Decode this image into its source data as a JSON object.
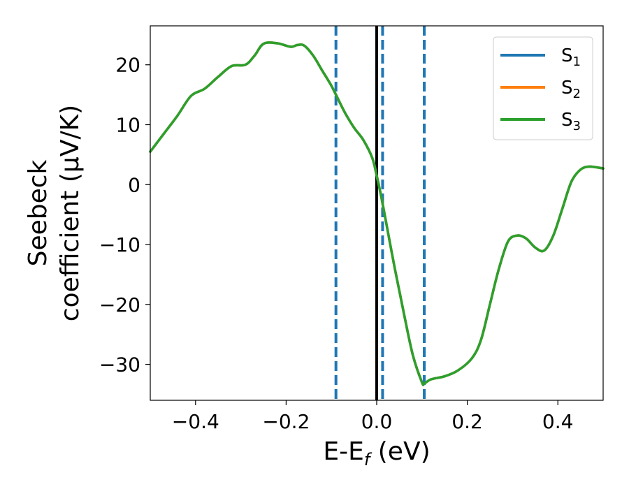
{
  "chart_data": {
    "type": "line",
    "xlabel": {
      "main": "E-E",
      "sub": "f",
      "tail": " (eV)"
    },
    "ylabel": {
      "line1": "Seebeck",
      "line2": "coefficient  (μV/K)"
    },
    "xlim": [
      -0.5,
      0.5
    ],
    "ylim": [
      -36,
      26.5
    ],
    "xticks": [
      {
        "value": -0.4,
        "label": "−0.4"
      },
      {
        "value": -0.2,
        "label": "−0.2"
      },
      {
        "value": 0.0,
        "label": "0.0"
      },
      {
        "value": 0.2,
        "label": "0.2"
      },
      {
        "value": 0.4,
        "label": "0.4"
      }
    ],
    "yticks": [
      {
        "value": 20,
        "label": "20"
      },
      {
        "value": 10,
        "label": "10"
      },
      {
        "value": 0,
        "label": "0"
      },
      {
        "value": -10,
        "label": "−10"
      },
      {
        "value": -20,
        "label": "−20"
      },
      {
        "value": -30,
        "label": "−30"
      }
    ],
    "grid": false,
    "legend_position": "top-right",
    "vlines": [
      {
        "x": -0.09,
        "color": "#1f77b4",
        "style": "dashed"
      },
      {
        "x": 0.0,
        "color": "#000000",
        "style": "solid"
      },
      {
        "x": 0.013,
        "color": "#1f77b4",
        "style": "dashed"
      },
      {
        "x": 0.105,
        "color": "#1f77b4",
        "style": "dashed"
      }
    ],
    "x": [
      -0.5,
      -0.47,
      -0.44,
      -0.41,
      -0.38,
      -0.35,
      -0.32,
      -0.29,
      -0.27,
      -0.25,
      -0.22,
      -0.19,
      -0.175,
      -0.16,
      -0.14,
      -0.12,
      -0.1,
      -0.09,
      -0.07,
      -0.05,
      -0.03,
      -0.01,
      0.0,
      0.01,
      0.02,
      0.04,
      0.06,
      0.08,
      0.1,
      0.105,
      0.12,
      0.15,
      0.18,
      0.21,
      0.23,
      0.25,
      0.27,
      0.29,
      0.31,
      0.33,
      0.35,
      0.37,
      0.39,
      0.41,
      0.43,
      0.45,
      0.47,
      0.5
    ],
    "series": [
      {
        "name": {
          "main": "S",
          "sub": "1"
        },
        "color": "#1f77b4",
        "values": [
          5.5,
          8.5,
          11.5,
          14.8,
          16.0,
          18.0,
          19.8,
          20.0,
          21.5,
          23.5,
          23.6,
          23.0,
          23.3,
          23.2,
          21.5,
          19.0,
          16.5,
          15.0,
          12.0,
          9.5,
          7.5,
          4.5,
          1.5,
          -2.0,
          -6.0,
          -14.0,
          -21.5,
          -28.5,
          -33.0,
          -33.2,
          -32.5,
          -32.0,
          -31.0,
          -29.0,
          -26.0,
          -20.0,
          -14.0,
          -9.5,
          -8.5,
          -9.0,
          -10.5,
          -11.0,
          -8.5,
          -4.0,
          0.5,
          2.5,
          3.0,
          2.7
        ]
      },
      {
        "name": {
          "main": "S",
          "sub": "2"
        },
        "color": "#ff7f0e",
        "values": [
          5.5,
          8.5,
          11.5,
          14.8,
          16.0,
          18.0,
          19.8,
          20.0,
          21.5,
          23.5,
          23.6,
          23.0,
          23.3,
          23.2,
          21.5,
          19.0,
          16.5,
          15.0,
          12.0,
          9.5,
          7.5,
          4.5,
          1.5,
          -2.0,
          -6.0,
          -14.0,
          -21.5,
          -28.5,
          -33.0,
          -33.2,
          -32.5,
          -32.0,
          -31.0,
          -29.0,
          -26.0,
          -20.0,
          -14.0,
          -9.5,
          -8.5,
          -9.0,
          -10.5,
          -11.0,
          -8.5,
          -4.0,
          0.5,
          2.5,
          3.0,
          2.7
        ]
      },
      {
        "name": {
          "main": "S",
          "sub": "3"
        },
        "color": "#2ca02c",
        "values": [
          5.5,
          8.5,
          11.5,
          14.8,
          16.0,
          18.0,
          19.8,
          20.0,
          21.5,
          23.5,
          23.6,
          23.0,
          23.3,
          23.2,
          21.5,
          19.0,
          16.5,
          15.0,
          12.0,
          9.5,
          7.5,
          4.5,
          1.5,
          -2.0,
          -6.0,
          -14.0,
          -21.5,
          -28.5,
          -33.0,
          -33.2,
          -32.5,
          -32.0,
          -31.0,
          -29.0,
          -26.0,
          -20.0,
          -14.0,
          -9.5,
          -8.5,
          -9.0,
          -10.5,
          -11.0,
          -8.5,
          -4.0,
          0.5,
          2.5,
          3.0,
          2.7
        ]
      }
    ]
  }
}
